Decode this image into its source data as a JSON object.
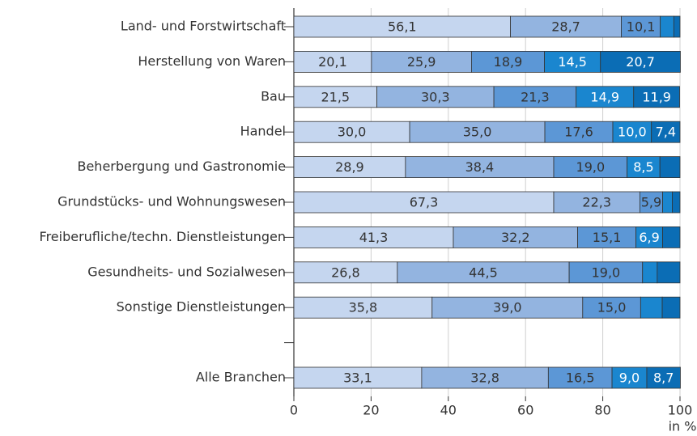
{
  "chart_data": {
    "type": "bar",
    "orientation": "horizontal",
    "stacked": true,
    "categories": [
      "Land- und Forstwirtschaft",
      "Herstellung von Waren",
      "Bau",
      "Handel",
      "Beherbergung und Gastronomie",
      "Grundstücks- und Wohnungswesen",
      "Freiberufliche/techn. Dienstleistungen",
      "Gesundheits- und Sozialwesen",
      "Sonstige Dienstleistungen",
      null,
      "Alle Branchen"
    ],
    "series": [
      {
        "color": "#c5d6ef",
        "values": [
          56.1,
          20.1,
          21.5,
          30.0,
          28.9,
          67.3,
          41.3,
          26.8,
          35.8,
          null,
          33.1
        ],
        "value_labels": [
          "56,1",
          "20,1",
          "21,5",
          "30,0",
          "28,9",
          "67,3",
          "41,3",
          "26,8",
          "35,8",
          null,
          "33,1"
        ]
      },
      {
        "color": "#93b4e0",
        "values": [
          28.7,
          25.9,
          30.3,
          35.0,
          38.4,
          22.3,
          32.2,
          44.5,
          39.0,
          null,
          32.8
        ],
        "value_labels": [
          "28,7",
          "25,9",
          "30,3",
          "35,0",
          "38,4",
          "22,3",
          "32,2",
          "44,5",
          "39,0",
          null,
          "32,8"
        ]
      },
      {
        "color": "#5c97d6",
        "values": [
          10.1,
          18.9,
          21.3,
          17.6,
          19.0,
          5.9,
          15.1,
          19.0,
          15.0,
          null,
          16.5
        ],
        "value_labels": [
          "10,1",
          "18,9",
          "21,3",
          "17,6",
          "19,0",
          "5,9",
          "15,1",
          "19,0",
          "15,0",
          null,
          "16,5"
        ]
      },
      {
        "color": "#1a86cf",
        "values": [
          3.5,
          14.5,
          14.9,
          10.0,
          8.5,
          2.5,
          6.9,
          3.8,
          5.6,
          null,
          9.0
        ],
        "value_labels": [
          null,
          "14,5",
          "14,9",
          "10,0",
          "8,5",
          null,
          "6,9",
          null,
          null,
          null,
          "9,0"
        ]
      },
      {
        "color": "#0b6db5",
        "values": [
          1.6,
          20.7,
          11.9,
          7.4,
          5.2,
          2.0,
          4.5,
          5.9,
          4.6,
          null,
          8.7
        ],
        "value_labels": [
          null,
          "20,7",
          "11,9",
          "7,4",
          null,
          null,
          null,
          null,
          null,
          null,
          "8,7"
        ]
      }
    ],
    "xlim": [
      0,
      100
    ],
    "xticks": [
      0,
      20,
      40,
      60,
      80,
      100
    ],
    "xlabel": "in %",
    "grid": true
  }
}
